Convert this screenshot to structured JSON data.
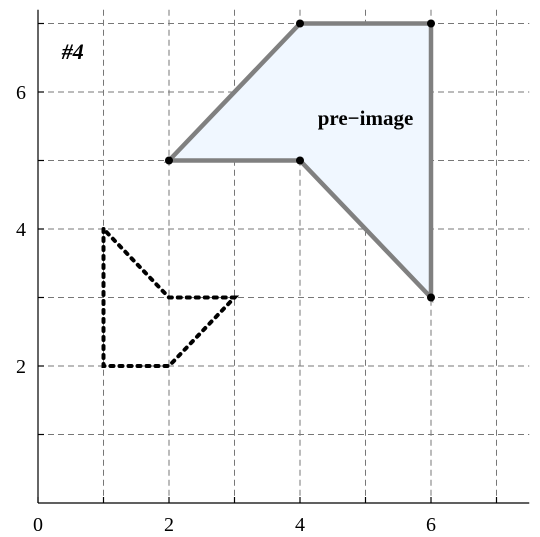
{
  "problem_label": "#4",
  "axis": {
    "x_range": [
      0,
      7.5
    ],
    "y_range": [
      0,
      7.2
    ],
    "x_tick_labels": [
      "0",
      "2",
      "4",
      "6"
    ],
    "y_tick_labels": [
      "2",
      "4",
      "6"
    ]
  },
  "pre_image": {
    "label": "pre−image",
    "fill_color": "#f0f7ff",
    "stroke_color": "#808080",
    "vertices": [
      [
        2,
        5
      ],
      [
        4,
        7
      ],
      [
        6,
        7
      ],
      [
        6,
        3
      ],
      [
        4,
        5
      ]
    ]
  },
  "image": {
    "stroke_color": "#000000",
    "vertices": [
      [
        1,
        4
      ],
      [
        1,
        2
      ],
      [
        2,
        2
      ],
      [
        3,
        3
      ],
      [
        2,
        3
      ]
    ]
  }
}
